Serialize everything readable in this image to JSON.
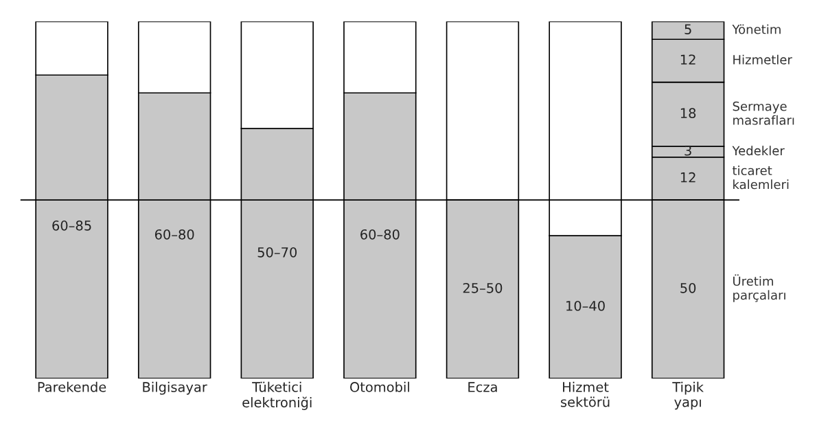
{
  "chart_data": {
    "type": "bar",
    "stacked": true,
    "categories": [
      "Parekende",
      "Bilgisayar",
      "Tüketici\nelektroniği",
      "Otomobil",
      "Ecza",
      "Hizmet\nsektörü",
      "Tipik\nyapı"
    ],
    "series": [
      {
        "color": "#c8c8c8",
        "values": [
          85,
          80,
          70,
          80,
          50,
          40,
          null
        ],
        "value_labels": [
          "60–85",
          "60–80",
          "50–70",
          "60–80",
          "25–50",
          "10–40",
          null
        ]
      },
      {
        "name": "Üretim\nparçaları",
        "color": "#c8c8c8",
        "values": [
          null,
          null,
          null,
          null,
          null,
          null,
          50
        ],
        "value_labels": [
          null,
          null,
          null,
          null,
          null,
          null,
          "50"
        ]
      },
      {
        "name": "ticaret\nkalemleri",
        "color": "#c8c8c8",
        "values": [
          null,
          null,
          null,
          null,
          null,
          null,
          12
        ],
        "value_labels": [
          null,
          null,
          null,
          null,
          null,
          null,
          "12"
        ]
      },
      {
        "name": "Yedekler",
        "color": "#c8c8c8",
        "values": [
          null,
          null,
          null,
          null,
          null,
          null,
          3
        ],
        "value_labels": [
          null,
          null,
          null,
          null,
          null,
          null,
          "3"
        ]
      },
      {
        "name": "Sermaye\nmasrafları",
        "color": "#c8c8c8",
        "values": [
          null,
          null,
          null,
          null,
          null,
          null,
          18
        ],
        "value_labels": [
          null,
          null,
          null,
          null,
          null,
          null,
          "18"
        ]
      },
      {
        "name": "Hizmetler",
        "color": "#c8c8c8",
        "values": [
          null,
          null,
          null,
          null,
          null,
          null,
          12
        ],
        "value_labels": [
          null,
          null,
          null,
          null,
          null,
          null,
          "12"
        ]
      },
      {
        "name": "Yönetim",
        "color": "#c8c8c8",
        "values": [
          null,
          null,
          null,
          null,
          null,
          null,
          5
        ],
        "value_labels": [
          null,
          null,
          null,
          null,
          null,
          null,
          "5"
        ]
      },
      {
        "color": "#ffffff",
        "values": [
          15,
          20,
          30,
          20,
          50,
          60,
          null
        ]
      }
    ],
    "ylim": [
      0,
      100
    ],
    "tick_labels": "x",
    "ref_lines": [
      {
        "axis": "y",
        "value": 50,
        "color": "#000000"
      }
    ]
  }
}
